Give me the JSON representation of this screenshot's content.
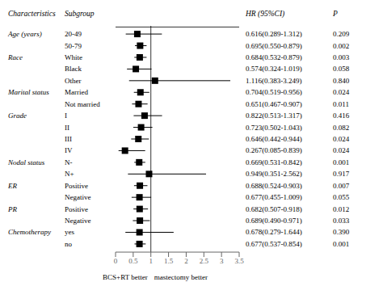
{
  "chart_data": {
    "type": "forest",
    "columns": [
      "Characteristics",
      "Subgroup",
      "HR (95%CI)",
      "P"
    ],
    "categories": [
      "20-49",
      "50-79",
      "White",
      "Black",
      "Other",
      "Married",
      "Not married",
      "I",
      "II",
      "III",
      "IV",
      "N-",
      "N+",
      "Positive",
      "Negative",
      "Positive",
      "Negative",
      "yes",
      "no"
    ],
    "groups": [
      "Age (years)",
      null,
      "Race",
      null,
      null,
      "Marital status",
      null,
      "Grade",
      null,
      null,
      null,
      "Nodal status",
      null,
      "ER",
      null,
      "PR",
      null,
      "Chemotherapy",
      null
    ],
    "values": [
      0.616,
      0.695,
      0.684,
      0.574,
      1.116,
      0.704,
      0.651,
      0.822,
      0.723,
      0.646,
      0.267,
      0.669,
      0.949,
      0.688,
      0.677,
      0.682,
      0.689,
      0.678,
      0.677
    ],
    "ci_low": [
      0.289,
      0.55,
      0.532,
      0.324,
      0.383,
      0.519,
      0.467,
      0.513,
      0.502,
      0.442,
      0.085,
      0.531,
      0.351,
      0.524,
      0.455,
      0.507,
      0.49,
      0.279,
      0.537
    ],
    "ci_high": [
      1.312,
      0.879,
      0.879,
      1.019,
      3.249,
      0.956,
      0.907,
      1.317,
      1.043,
      0.944,
      0.839,
      0.842,
      2.562,
      0.903,
      1.009,
      0.918,
      0.971,
      1.644,
      0.854
    ],
    "value_labels": [
      "0.616(0.289-1.312)",
      "0.695(0.550-0.879)",
      "0.684(0.532-0.879)",
      "0.574(0.324-1.019)",
      "1.116(0.383-3.249)",
      "0.704(0.519-0.956)",
      "0.651(0.467-0.907)",
      "0.822(0.513-1.317)",
      "0.723(0.502-1.043)",
      "0.646(0.442-0.944)",
      "0.267(0.085-0.839)",
      "0.669(0.531-0.842)",
      "0.949(0.351-2.562)",
      "0.688(0.524-0.903)",
      "0.677(0.455-1.009)",
      "0.682(0.507-0.918)",
      "0.689(0.490-0.971)",
      "0.678(0.279-1.644)",
      "0.677(0.537-0.854)"
    ],
    "p_labels": [
      "0.209",
      "0.002",
      "0.003",
      "0.058",
      "0.840",
      "0.024",
      "0.011",
      "0.416",
      "0.082",
      "0.024",
      "0.024",
      "0.001",
      "0.917",
      "0.007",
      "0.055",
      "0.012",
      "0.033",
      "0.390",
      "0.001"
    ],
    "reference_line": 1.0,
    "annotations": [
      "BCS+RT better",
      "mastectomy better"
    ],
    "xlim": [
      0,
      3.5
    ],
    "xticks": [
      0,
      0.5,
      1,
      1.5,
      2,
      2.5,
      3,
      3.5
    ],
    "color": "#000000"
  }
}
